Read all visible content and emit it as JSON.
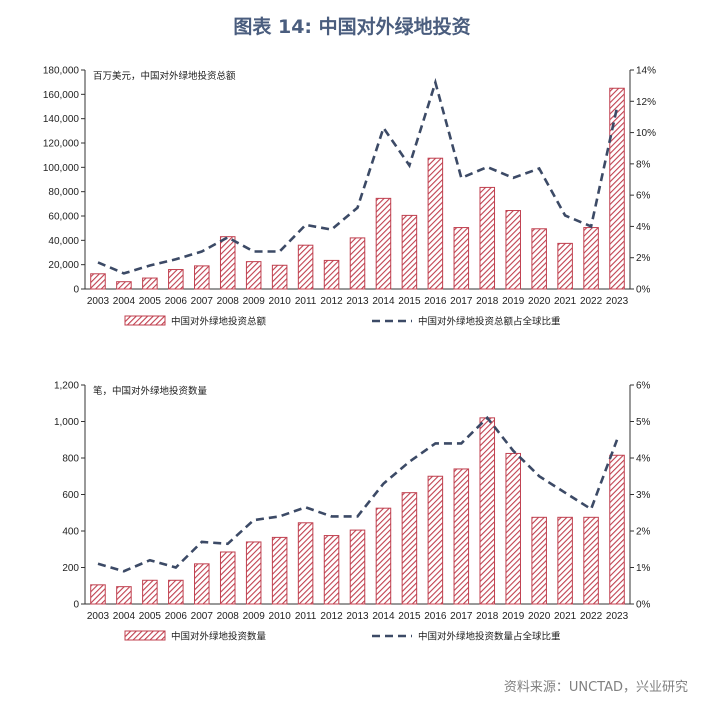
{
  "page": {
    "title": "图表 14: 中国对外绿地投资",
    "source": "资料来源：UNCTAD，兴业研究"
  },
  "colors": {
    "bar": "#c0404f",
    "line": "#3c4a66",
    "axis": "#333333"
  },
  "chart_data": [
    {
      "type": "bar",
      "unit_label": "百万美元，中国对外绿地投资总额",
      "categories": [
        "2003",
        "2004",
        "2005",
        "2006",
        "2007",
        "2008",
        "2009",
        "2010",
        "2011",
        "2012",
        "2013",
        "2014",
        "2015",
        "2016",
        "2017",
        "2018",
        "2019",
        "2020",
        "2021",
        "2022",
        "2023"
      ],
      "series": [
        {
          "name": "中国对外绿地投资总额",
          "type": "bar",
          "axis": "left",
          "values": [
            12500,
            6000,
            9000,
            16000,
            19000,
            43000,
            22500,
            19500,
            36000,
            23500,
            42000,
            74500,
            60500,
            107500,
            50500,
            83500,
            64500,
            49500,
            37500,
            50500,
            165000
          ]
        },
        {
          "name": "中国对外绿地投资总额占全球比重",
          "type": "line",
          "axis": "right",
          "values": [
            1.7,
            1.0,
            1.5,
            1.9,
            2.4,
            3.3,
            2.4,
            2.4,
            4.1,
            3.8,
            5.2,
            10.3,
            7.9,
            13.2,
            7.1,
            7.8,
            7.1,
            7.7,
            4.7,
            4.0,
            11.6
          ]
        }
      ],
      "y_left": {
        "min": 0,
        "max": 180000,
        "step": 20000,
        "tick_labels": [
          "0",
          "20,000",
          "40,000",
          "60,000",
          "80,000",
          "100,000",
          "120,000",
          "140,000",
          "160,000",
          "180,000"
        ]
      },
      "y_right": {
        "min": 0,
        "max": 14,
        "step": 2,
        "tick_labels": [
          "0%",
          "2%",
          "4%",
          "6%",
          "8%",
          "10%",
          "12%",
          "14%"
        ]
      },
      "legend": {
        "position": "bottom"
      }
    },
    {
      "type": "bar",
      "unit_label": "笔，中国对外绿地投资数量",
      "categories": [
        "2003",
        "2004",
        "2005",
        "2006",
        "2007",
        "2008",
        "2009",
        "2010",
        "2011",
        "2012",
        "2013",
        "2014",
        "2015",
        "2016",
        "2017",
        "2018",
        "2019",
        "2020",
        "2021",
        "2022",
        "2023"
      ],
      "series": [
        {
          "name": "中国对外绿地投资数量",
          "type": "bar",
          "axis": "left",
          "values": [
            105,
            95,
            130,
            130,
            220,
            285,
            340,
            365,
            445,
            375,
            405,
            525,
            610,
            700,
            740,
            1020,
            825,
            475,
            475,
            475,
            815
          ]
        },
        {
          "name": "中国对外绿地投资数量占全球比重",
          "type": "line",
          "axis": "right",
          "values": [
            1.1,
            0.9,
            1.2,
            1.0,
            1.7,
            1.65,
            2.3,
            2.4,
            2.65,
            2.4,
            2.4,
            3.3,
            3.9,
            4.4,
            4.4,
            5.1,
            4.2,
            3.5,
            3.05,
            2.6,
            4.5
          ]
        }
      ],
      "y_left": {
        "min": 0,
        "max": 1200,
        "step": 200,
        "tick_labels": [
          "0",
          "200",
          "400",
          "600",
          "800",
          "1,000",
          "1,200"
        ]
      },
      "y_right": {
        "min": 0,
        "max": 6,
        "step": 1,
        "tick_labels": [
          "0%",
          "1%",
          "2%",
          "3%",
          "4%",
          "5%",
          "6%"
        ]
      },
      "legend": {
        "position": "bottom"
      }
    }
  ]
}
